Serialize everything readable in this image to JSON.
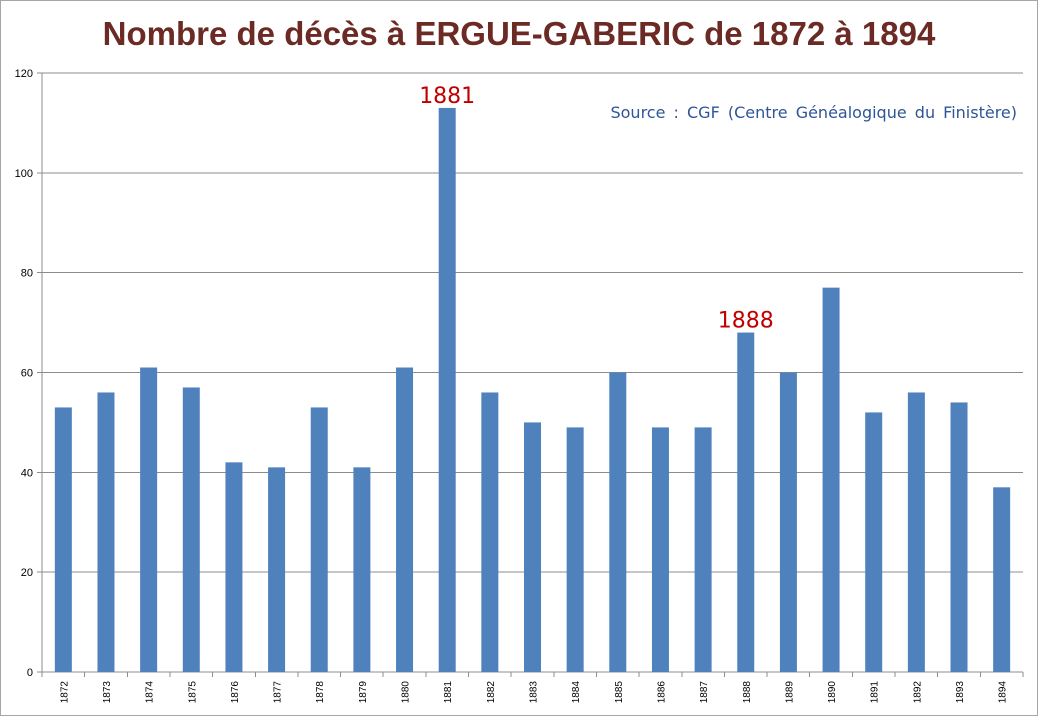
{
  "chart_data": {
    "type": "bar",
    "title": "Nombre de décès à ERGUE-GABERIC de 1872 à 1894",
    "source_note": "Source : CGF (Centre Généalogique du Finistère)",
    "categories": [
      "1872",
      "1873",
      "1874",
      "1875",
      "1876",
      "1877",
      "1878",
      "1879",
      "1880",
      "1881",
      "1882",
      "1883",
      "1884",
      "1885",
      "1886",
      "1887",
      "1888",
      "1889",
      "1890",
      "1891",
      "1892",
      "1893",
      "1894"
    ],
    "values": [
      53,
      56,
      61,
      57,
      42,
      41,
      53,
      41,
      61,
      113,
      56,
      50,
      49,
      60,
      49,
      49,
      68,
      60,
      77,
      52,
      56,
      54,
      37
    ],
    "ylim": [
      0,
      120
    ],
    "yticks": [
      0,
      20,
      40,
      60,
      80,
      100,
      120
    ],
    "grid": true,
    "legend": "none",
    "annotations": [
      {
        "text": "1881",
        "category": "1881"
      },
      {
        "text": "1888",
        "category": "1888"
      }
    ],
    "bar_color": "#4f81bd",
    "annotation_color": "#c00000",
    "title_color": "#6b2a24"
  }
}
